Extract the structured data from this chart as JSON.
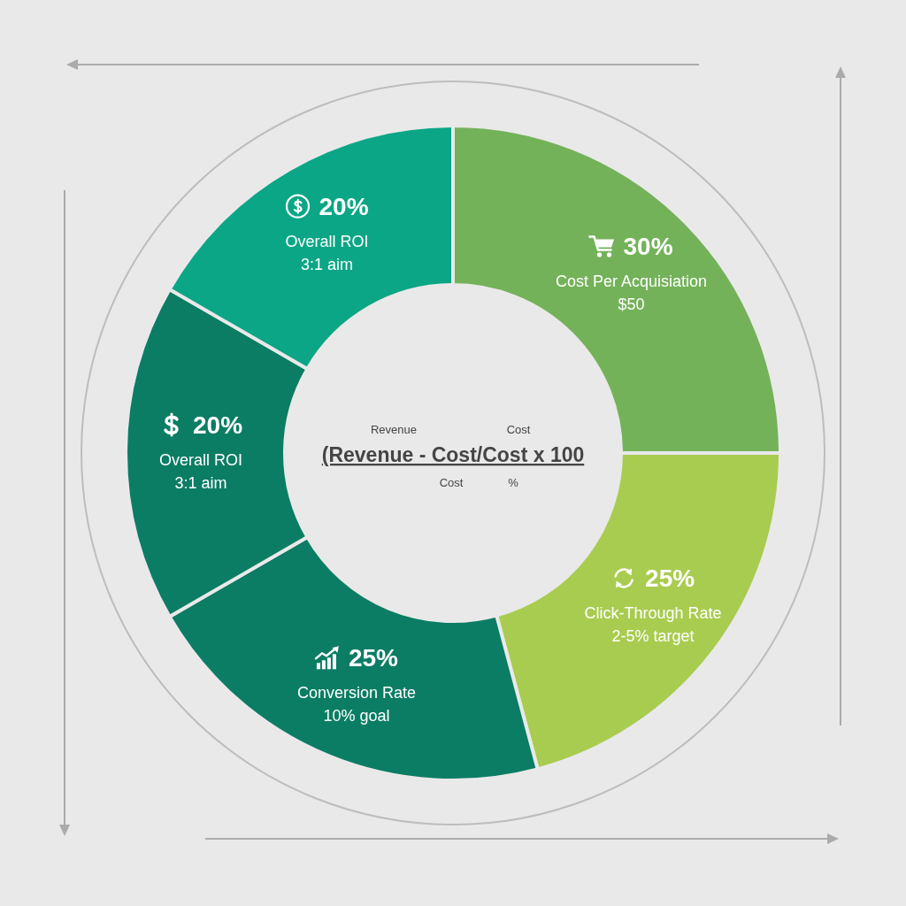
{
  "chart_data": {
    "type": "donut",
    "categories": [
      "Cost Per Acquisiation",
      "Click-Through Rate",
      "Conversion Rate",
      "Overall ROI",
      "Overall ROI"
    ],
    "values": [
      30,
      25,
      25,
      20,
      20
    ],
    "value_labels": [
      "30%",
      "25%",
      "25%",
      "20%",
      "20%"
    ],
    "colors": [
      "#74b25a",
      "#a8cc4f",
      "#0b7d64",
      "#0b7d64",
      "#0aa686"
    ],
    "annotations": [
      {
        "text": "$50",
        "x": "Cost Per Acquisiation"
      },
      {
        "text": "2-5% target",
        "x": "Click-Through Rate"
      },
      {
        "text": "10% goal",
        "x": "Conversion Rate"
      },
      {
        "text": "3:1 aim",
        "x": "Overall ROI"
      },
      {
        "text": "3:1 aim",
        "x": "Overall ROI"
      },
      "Revenue",
      "Cost",
      "(Revenue - Cost/Cost x 100",
      "Cost",
      "%"
    ]
  }
}
